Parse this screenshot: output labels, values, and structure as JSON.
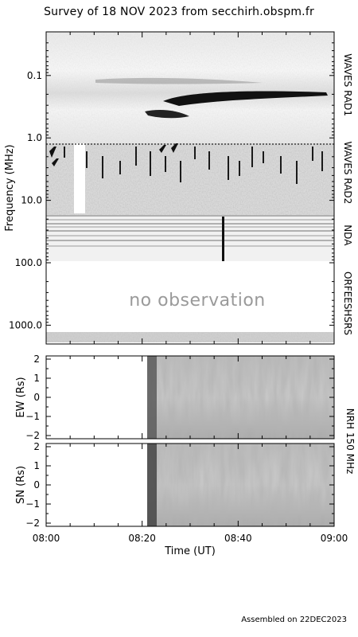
{
  "title": "Survey of 18 NOV 2023 from secchirh.obspm.fr",
  "footer": "Assembled on 22DEC2023",
  "chart_data": [
    {
      "type": "heatmap",
      "name": "dynamic-spectrum",
      "ylabel": "Frequency (MHz)",
      "yscale": "log",
      "yaxis_inverted": true,
      "ylim": [
        0.02,
        2000
      ],
      "xlim": [
        "08:00",
        "09:00"
      ],
      "yticks": [
        "0.1",
        "1.0",
        "10.0",
        "100.0",
        "1000.0"
      ],
      "ytick_values": [
        0.1,
        1,
        10,
        100,
        1000
      ],
      "instruments": [
        {
          "label": "WAVES RAD1",
          "freq_range_mhz": [
            0.02,
            1.0
          ]
        },
        {
          "label": "WAVES RAD2",
          "freq_range_mhz": [
            1.0,
            13.0
          ]
        },
        {
          "label": "NDA",
          "freq_range_mhz": [
            13.0,
            100.0
          ]
        },
        {
          "label": "ORFEES",
          "freq_range_mhz": [
            100.0,
            1000.0
          ]
        },
        {
          "label": "HSRS",
          "freq_range_mhz": [
            1000.0,
            2000.0
          ]
        }
      ],
      "annotation": "no observation",
      "annotation_range_mhz": [
        100,
        900
      ]
    },
    {
      "type": "heatmap",
      "name": "nrh-ew",
      "ylabel": "EW (Rs)",
      "ylim": [
        -2,
        2
      ],
      "yticks": [
        "2",
        "1",
        "0",
        "−1",
        "−2"
      ],
      "ytick_values": [
        2,
        1,
        0,
        -1,
        -2
      ],
      "data_start": "08:21"
    },
    {
      "type": "heatmap",
      "name": "nrh-sn",
      "ylabel": "SN (Rs)",
      "ylim": [
        -2,
        2
      ],
      "yticks": [
        "2",
        "1",
        "0",
        "−1",
        "−2"
      ],
      "ytick_values": [
        2,
        1,
        0,
        -1,
        -2
      ],
      "data_start": "08:21"
    }
  ],
  "nrh_label": "NRH 150 MHz",
  "xaxis": {
    "label": "Time (UT)",
    "ticks": [
      "08:00",
      "08:20",
      "08:40",
      "09:00"
    ],
    "tick_minutes": [
      0,
      20,
      40,
      60
    ]
  },
  "colors": {
    "background": "#ffffff",
    "axis": "#000000",
    "annotation": "#9a9a9a"
  }
}
